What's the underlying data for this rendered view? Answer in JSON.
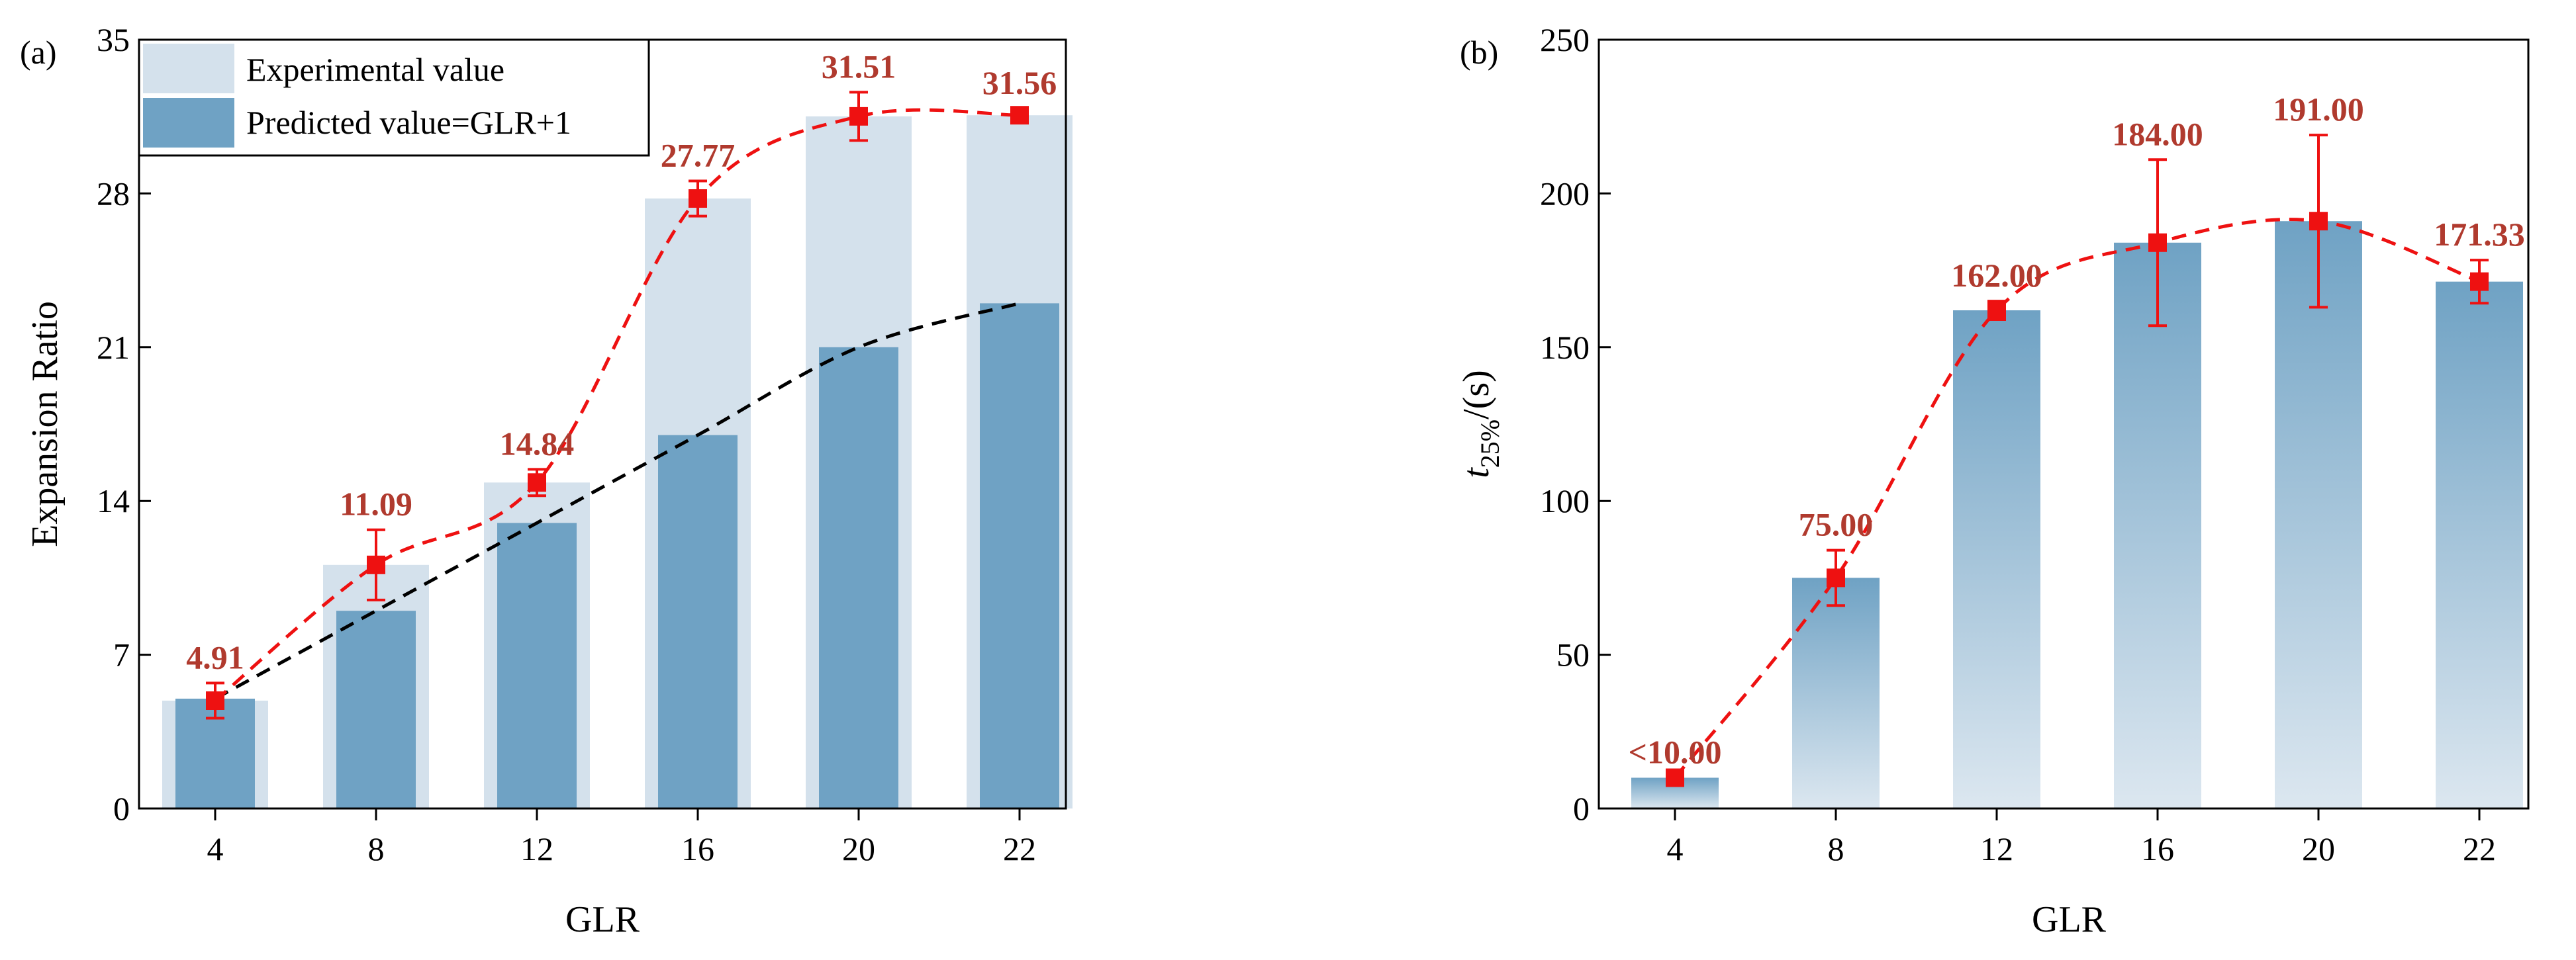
{
  "colors": {
    "experimental_bar": "#d4e1ec",
    "predicted_bar": "#6fa2c4",
    "gradient_top": "#6fa2c4",
    "gradient_bottom": "#dce7f0",
    "marker": "#ee1111",
    "label": "#b03a2e",
    "fit_red": "#ee1111",
    "fit_black": "#000000"
  },
  "chart_data": [
    {
      "panel_label": "(a)",
      "type": "bar",
      "xlabel": "GLR",
      "ylabel": "Expansion Ratio",
      "ylim": [
        0,
        35
      ],
      "yticks": [
        0,
        7,
        14,
        21,
        28,
        35
      ],
      "categories": [
        "4",
        "8",
        "12",
        "16",
        "20",
        "22"
      ],
      "legend_position": "top-left",
      "series": [
        {
          "name": "Experimental value",
          "values": [
            4.91,
            11.09,
            14.84,
            27.77,
            31.51,
            31.56
          ]
        },
        {
          "name": "Predicted value=GLR+1",
          "values": [
            5,
            9,
            13,
            17,
            21,
            23
          ]
        }
      ],
      "points": [
        4.91,
        11.09,
        14.84,
        27.77,
        31.51,
        31.56
      ],
      "errors": [
        0.8,
        1.6,
        0.6,
        0.8,
        1.1,
        0.3
      ],
      "point_labels": [
        "4.91",
        "11.09",
        "14.84",
        "27.77",
        "31.51",
        "31.56"
      ]
    },
    {
      "panel_label": "(b)",
      "type": "bar",
      "xlabel": "GLR",
      "ylabel_main": "t",
      "ylabel_sub": "25%",
      "ylabel_rest": "/(s)",
      "ylim": [
        0,
        250
      ],
      "yticks": [
        0,
        50,
        100,
        150,
        200,
        250
      ],
      "categories": [
        "4",
        "8",
        "12",
        "16",
        "20",
        "22"
      ],
      "series": [
        {
          "values": [
            10,
            75,
            162,
            184,
            191,
            171.33
          ]
        }
      ],
      "points": [
        10,
        75,
        162,
        184,
        191,
        171.33
      ],
      "errors": [
        0,
        9,
        3,
        27,
        28,
        7
      ],
      "point_labels": [
        "<10.00",
        "75.00",
        "162.00",
        "184.00",
        "191.00",
        "171.33"
      ]
    }
  ]
}
